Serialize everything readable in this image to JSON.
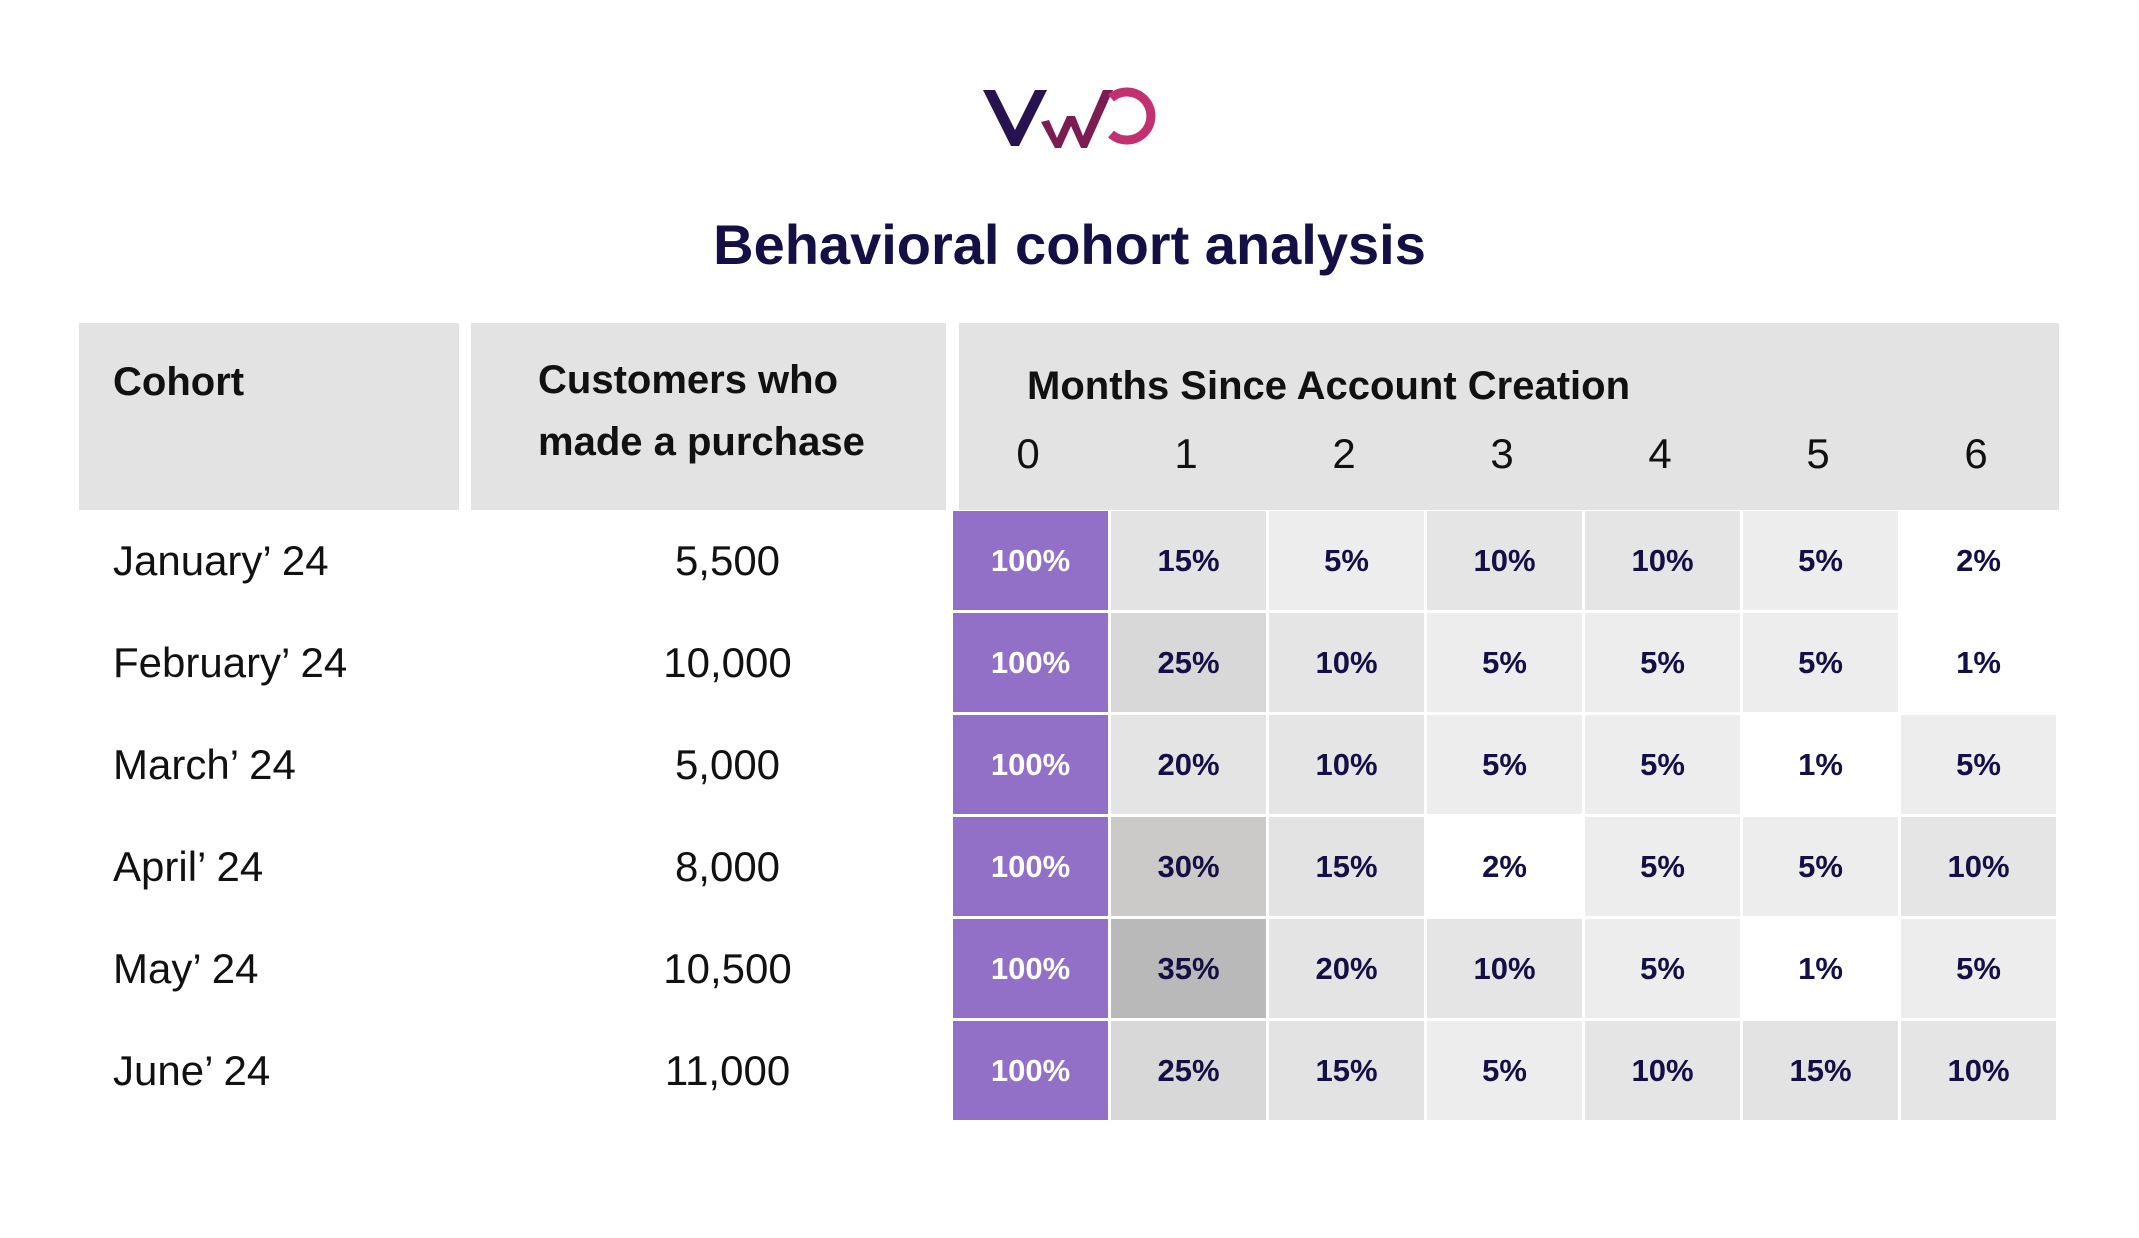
{
  "logo": {
    "text": "VWO",
    "colors": {
      "v": "#27134f",
      "w": "#7b1d52",
      "o": "#c2306f"
    }
  },
  "title": "Behavioral cohort analysis",
  "headers": {
    "cohort": "Cohort",
    "customers": "Customers who made a purchase",
    "months": "Months Since Account Creation",
    "month_numbers": [
      "0",
      "1",
      "2",
      "3",
      "4",
      "5",
      "6"
    ]
  },
  "rows": [
    {
      "cohort": "January’ 24",
      "customers": "5,500",
      "values": [
        "100%",
        "15%",
        "5%",
        "10%",
        "10%",
        "5%",
        "2%"
      ]
    },
    {
      "cohort": "February’ 24",
      "customers": "10,000",
      "values": [
        "100%",
        "25%",
        "10%",
        "5%",
        "5%",
        "5%",
        "1%"
      ]
    },
    {
      "cohort": "March’ 24",
      "customers": "5,000",
      "values": [
        "100%",
        "20%",
        "10%",
        "5%",
        "5%",
        "1%",
        "5%"
      ]
    },
    {
      "cohort": "April’ 24",
      "customers": "8,000",
      "values": [
        "100%",
        "30%",
        "15%",
        "2%",
        "5%",
        "5%",
        "10%"
      ]
    },
    {
      "cohort": "May’ 24",
      "customers": "10,500",
      "values": [
        "100%",
        "35%",
        "20%",
        "10%",
        "5%",
        "1%",
        "5%"
      ]
    },
    {
      "cohort": "June’ 24",
      "customers": "11,000",
      "values": [
        "100%",
        "25%",
        "15%",
        "5%",
        "10%",
        "15%",
        "10%"
      ]
    }
  ],
  "cell_colors": {
    "100%": "#9370c8",
    "35%": "#b9b9b9",
    "30%": "#ccc9c9",
    "25%": "#d8d8d8",
    "20%": "#e4e4e4",
    "15%": "#e3e3e3",
    "10%": "#e5e5e5",
    "5%": "#ededed",
    "2%": "#ffffff",
    "1%": "#ffffff"
  },
  "header_color": "#e3e3e3",
  "title_color": "#140f45"
}
